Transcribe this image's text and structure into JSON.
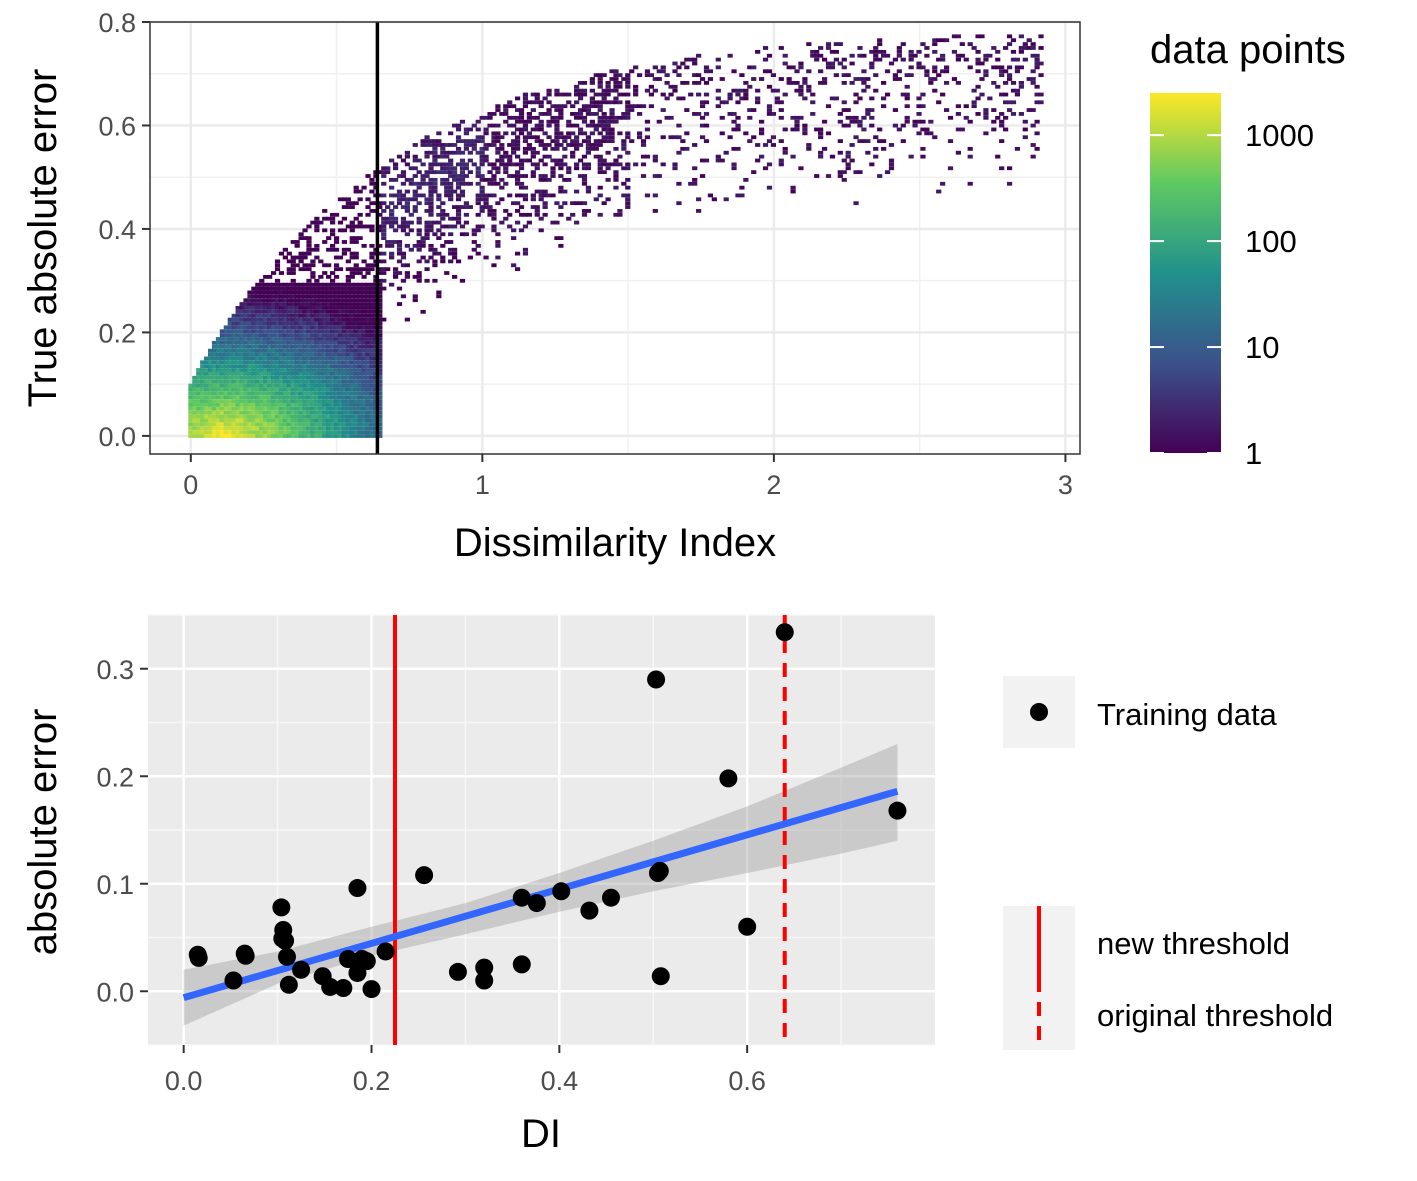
{
  "chart_data": [
    {
      "type": "heatmap",
      "xlabel": "Dissimilarity Index",
      "ylabel": "True absolute error",
      "xlim": [
        -0.14,
        3.05
      ],
      "ylim": [
        -0.035,
        0.8
      ],
      "x_ticks": [
        0,
        1,
        2,
        3
      ],
      "x_tick_labels": [
        "0",
        "1",
        "2",
        "3"
      ],
      "y_ticks": [
        0.0,
        0.2,
        0.4,
        0.6,
        0.8
      ],
      "y_tick_labels": [
        "0.0",
        "0.2",
        "0.4",
        "0.6",
        "0.8"
      ],
      "threshold_x": 0.64,
      "grid": true,
      "legend": {
        "title": "data points",
        "scale": "log10",
        "range": [
          1,
          2500
        ],
        "ticks": [
          1,
          10,
          100,
          1000
        ],
        "tick_labels": [
          "1",
          "10",
          "100",
          "1000"
        ],
        "placement": "right",
        "palette": [
          "#440154",
          "#3b528b",
          "#21918c",
          "#5ec962",
          "#fde725"
        ]
      },
      "density_regions": [
        {
          "x": [
            0.0,
            0.6
          ],
          "y": [
            0.0,
            0.3
          ],
          "max_count": 2500,
          "description_level": "core"
        },
        {
          "x": [
            0.3,
            1.0
          ],
          "y": [
            0.0,
            0.55
          ]
        },
        {
          "x": [
            0.6,
            2.9
          ],
          "y": [
            0.2,
            0.77
          ]
        }
      ]
    },
    {
      "type": "scatter",
      "xlabel": "DI",
      "ylabel": "absolute error",
      "xlim": [
        -0.038,
        0.8
      ],
      "ylim": [
        -0.05,
        0.35
      ],
      "x_ticks": [
        0.0,
        0.2,
        0.4,
        0.6
      ],
      "x_tick_labels": [
        "0.0",
        "0.2",
        "0.4",
        "0.6"
      ],
      "y_ticks": [
        0.0,
        0.1,
        0.2,
        0.3
      ],
      "y_tick_labels": [
        "0.0",
        "0.1",
        "0.2",
        "0.3"
      ],
      "grid": true,
      "series": [
        {
          "name": "Training data",
          "points": [
            [
              0.015,
              0.034
            ],
            [
              0.016,
              0.031
            ],
            [
              0.053,
              0.01
            ],
            [
              0.065,
              0.035
            ],
            [
              0.066,
              0.033
            ],
            [
              0.104,
              0.078
            ],
            [
              0.105,
              0.049
            ],
            [
              0.106,
              0.057
            ],
            [
              0.108,
              0.047
            ],
            [
              0.11,
              0.032
            ],
            [
              0.112,
              0.006
            ],
            [
              0.125,
              0.02
            ],
            [
              0.148,
              0.014
            ],
            [
              0.156,
              0.004
            ],
            [
              0.17,
              0.003
            ],
            [
              0.175,
              0.03
            ],
            [
              0.185,
              0.096
            ],
            [
              0.185,
              0.017
            ],
            [
              0.19,
              0.03
            ],
            [
              0.195,
              0.028
            ],
            [
              0.2,
              0.002
            ],
            [
              0.215,
              0.037
            ],
            [
              0.256,
              0.108
            ],
            [
              0.292,
              0.018
            ],
            [
              0.32,
              0.022
            ],
            [
              0.32,
              0.01
            ],
            [
              0.36,
              0.025
            ],
            [
              0.36,
              0.087
            ],
            [
              0.376,
              0.082
            ],
            [
              0.402,
              0.093
            ],
            [
              0.432,
              0.075
            ],
            [
              0.455,
              0.087
            ],
            [
              0.503,
              0.29
            ],
            [
              0.505,
              0.11
            ],
            [
              0.507,
              0.112
            ],
            [
              0.508,
              0.014
            ],
            [
              0.58,
              0.198
            ],
            [
              0.6,
              0.06
            ],
            [
              0.64,
              0.334
            ],
            [
              0.76,
              0.168
            ]
          ]
        }
      ],
      "fit_line": {
        "x": [
          0.0,
          0.76
        ],
        "y": [
          -0.006,
          0.186
        ],
        "color": "#3366ff"
      },
      "confidence_band": {
        "x": [
          0.0,
          0.1,
          0.2,
          0.3,
          0.4,
          0.5,
          0.6,
          0.7,
          0.76
        ],
        "lower": [
          -0.032,
          0.007,
          0.033,
          0.053,
          0.074,
          0.093,
          0.11,
          0.128,
          0.14
        ],
        "upper": [
          0.02,
          0.037,
          0.06,
          0.082,
          0.11,
          0.14,
          0.172,
          0.208,
          0.23
        ]
      },
      "thresholds": [
        {
          "name": "new threshold",
          "x": 0.225,
          "color": "#ff0000",
          "style": "solid"
        },
        {
          "name": "original threshold",
          "x": 0.64,
          "color": "#ff0000",
          "style": "dashed"
        }
      ],
      "legend": {
        "placement": "right"
      }
    }
  ]
}
